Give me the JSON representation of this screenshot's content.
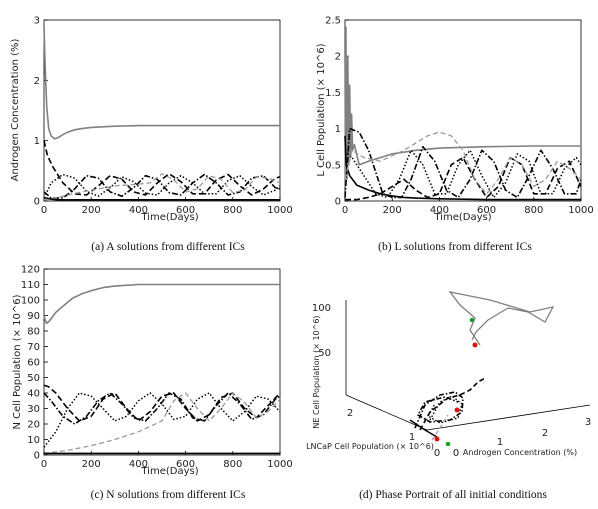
{
  "chart_data": [
    {
      "type": "line",
      "title": "",
      "xlabel": "Time(Days)",
      "ylabel": "Androgen Concentration (%)",
      "xlim": [
        0,
        1000
      ],
      "ylim": [
        0,
        3
      ],
      "xticks": [
        "0",
        "200",
        "400",
        "600",
        "800",
        "1000"
      ],
      "yticks": [
        "0",
        "1",
        "2",
        "3"
      ],
      "caption": "(a) A solutions from different ICs",
      "series": [
        {
          "style": "gray-solid",
          "x": [
            0,
            5,
            12,
            20,
            30,
            45,
            60,
            80,
            100,
            130,
            160,
            200,
            250,
            300,
            400,
            500,
            600,
            800,
            1000
          ],
          "y": [
            2.9,
            2.2,
            1.55,
            1.2,
            1.08,
            1.03,
            1.05,
            1.1,
            1.14,
            1.18,
            1.2,
            1.22,
            1.23,
            1.24,
            1.25,
            1.25,
            1.25,
            1.25,
            1.25
          ]
        },
        {
          "style": "black-dotted",
          "x": [
            0,
            30,
            80,
            130,
            180,
            230,
            280,
            330,
            380,
            430,
            480,
            530,
            580,
            630,
            680,
            730,
            780,
            830,
            880,
            930,
            980,
            1000
          ],
          "y": [
            0.05,
            0.3,
            0.44,
            0.38,
            0.16,
            0.08,
            0.22,
            0.4,
            0.32,
            0.13,
            0.1,
            0.3,
            0.42,
            0.3,
            0.12,
            0.12,
            0.34,
            0.42,
            0.24,
            0.1,
            0.18,
            0.25
          ]
        },
        {
          "style": "black-dashed",
          "x": [
            0,
            15,
            40,
            80,
            130,
            180,
            230,
            280,
            330,
            380,
            430,
            480,
            530,
            580,
            630,
            680,
            730,
            780,
            830,
            880,
            930,
            980,
            1000
          ],
          "y": [
            1.0,
            0.75,
            0.55,
            0.3,
            0.12,
            0.1,
            0.25,
            0.42,
            0.36,
            0.15,
            0.1,
            0.3,
            0.45,
            0.32,
            0.12,
            0.12,
            0.35,
            0.44,
            0.25,
            0.1,
            0.2,
            0.38,
            0.4
          ]
        },
        {
          "style": "black-dashdot",
          "x": [
            0,
            30,
            80,
            130,
            180,
            230,
            280,
            330,
            380,
            430,
            480,
            530,
            580,
            630,
            680,
            730,
            780,
            830,
            880,
            930,
            980,
            1000
          ],
          "y": [
            0.15,
            0.05,
            0.05,
            0.2,
            0.42,
            0.38,
            0.15,
            0.08,
            0.22,
            0.42,
            0.36,
            0.14,
            0.1,
            0.3,
            0.44,
            0.3,
            0.1,
            0.15,
            0.38,
            0.42,
            0.22,
            0.2
          ]
        },
        {
          "style": "gray-dashed",
          "x": [
            0,
            50,
            100,
            200,
            300,
            400,
            450,
            500,
            550,
            600,
            650,
            700,
            750,
            800,
            850,
            900,
            950,
            1000
          ],
          "y": [
            0.02,
            0.05,
            0.1,
            0.18,
            0.25,
            0.28,
            0.3,
            0.45,
            0.35,
            0.15,
            0.2,
            0.42,
            0.36,
            0.14,
            0.18,
            0.4,
            0.38,
            0.3
          ]
        },
        {
          "style": "black-solid",
          "x": [
            0,
            10,
            30,
            60,
            100,
            200,
            400,
            600,
            800,
            1000
          ],
          "y": [
            0.05,
            0.05,
            0.03,
            0.02,
            0.02,
            0.02,
            0.02,
            0.02,
            0.02,
            0.02
          ]
        }
      ]
    },
    {
      "type": "line",
      "title": "",
      "xlabel": "Time(Days)",
      "ylabel": "L Cell Population (× 10^6)",
      "xlim": [
        0,
        1000
      ],
      "ylim": [
        0,
        2.5
      ],
      "xticks": [
        "0",
        "200",
        "400",
        "600",
        "800",
        "1000"
      ],
      "yticks": [
        "0",
        "0.5",
        "1",
        "1.5",
        "2",
        "2.5"
      ],
      "caption": "(b) L solutions from different ICs",
      "series": [
        {
          "style": "gray-solid",
          "x": [
            0,
            4,
            8,
            12,
            16,
            20,
            24,
            28,
            32,
            40,
            60,
            100,
            150,
            200,
            300,
            400,
            600,
            800,
            1000
          ],
          "y": [
            0.1,
            2.4,
            0.3,
            2.0,
            0.5,
            1.6,
            0.6,
            1.2,
            0.7,
            0.78,
            0.5,
            0.55,
            0.6,
            0.65,
            0.7,
            0.73,
            0.75,
            0.76,
            0.76
          ]
        },
        {
          "style": "black-solid",
          "x": [
            0,
            5,
            20,
            50,
            100,
            150,
            200,
            250,
            300,
            400,
            600,
            800,
            1000
          ],
          "y": [
            0.9,
            0.5,
            0.35,
            0.22,
            0.15,
            0.1,
            0.07,
            0.05,
            0.04,
            0.03,
            0.02,
            0.02,
            0.02
          ]
        },
        {
          "style": "black-dashdot",
          "x": [
            0,
            20,
            60,
            100,
            130,
            160,
            200,
            240,
            280,
            330,
            380,
            430,
            480,
            530,
            580,
            630,
            680,
            730,
            780,
            830,
            880,
            930,
            980,
            1000
          ],
          "y": [
            0.05,
            1.0,
            0.95,
            0.7,
            0.4,
            0.1,
            0.05,
            0.05,
            0.3,
            0.75,
            0.55,
            0.15,
            0.05,
            0.3,
            0.7,
            0.55,
            0.15,
            0.05,
            0.35,
            0.7,
            0.45,
            0.1,
            0.1,
            0.3
          ]
        },
        {
          "style": "black-dashed",
          "x": [
            0,
            50,
            100,
            150,
            200,
            250,
            300,
            350,
            400,
            450,
            500,
            550,
            600,
            650,
            700,
            750,
            800,
            850,
            900,
            950,
            1000
          ],
          "y": [
            0.02,
            0.02,
            0.05,
            0.1,
            0.2,
            0.3,
            0.15,
            0.05,
            0.1,
            0.5,
            0.6,
            0.3,
            0.05,
            0.2,
            0.6,
            0.5,
            0.1,
            0.1,
            0.45,
            0.55,
            0.2
          ]
        },
        {
          "style": "black-dotted",
          "x": [
            0,
            30,
            80,
            130,
            180,
            230,
            280,
            330,
            380,
            430,
            480,
            530,
            580,
            630,
            680,
            730,
            780,
            830,
            880,
            930,
            980,
            1000
          ],
          "y": [
            0.7,
            0.6,
            0.35,
            0.1,
            0.05,
            0.3,
            0.7,
            0.5,
            0.1,
            0.1,
            0.5,
            0.7,
            0.35,
            0.05,
            0.25,
            0.65,
            0.55,
            0.1,
            0.1,
            0.45,
            0.6,
            0.5
          ]
        },
        {
          "style": "gray-dashed",
          "x": [
            0,
            30,
            80,
            150,
            250,
            350,
            400,
            450,
            500,
            550,
            600,
            650,
            700,
            750,
            800,
            850,
            900,
            950,
            1000
          ],
          "y": [
            0.3,
            0.7,
            0.6,
            0.55,
            0.7,
            0.9,
            0.95,
            0.9,
            0.7,
            0.3,
            0.1,
            0.3,
            0.6,
            0.5,
            0.2,
            0.3,
            0.55,
            0.45,
            0.3
          ]
        }
      ]
    },
    {
      "type": "line",
      "title": "",
      "xlabel": "Time(Days)",
      "ylabel": "N Cell Population (× 10^6)",
      "xlim": [
        0,
        1000
      ],
      "ylim": [
        0,
        120
      ],
      "xticks": [
        "0",
        "200",
        "400",
        "600",
        "800",
        "1000"
      ],
      "yticks": [
        "0",
        "10",
        "20",
        "30",
        "40",
        "50",
        "60",
        "70",
        "80",
        "90",
        "100",
        "110",
        "120"
      ],
      "caption": "(c) N solutions from different ICs",
      "series": [
        {
          "style": "gray-solid",
          "x": [
            0,
            5,
            10,
            20,
            30,
            50,
            80,
            120,
            160,
            200,
            250,
            300,
            400,
            500,
            600,
            800,
            1000
          ],
          "y": [
            90,
            87,
            85,
            86,
            88,
            92,
            96,
            101,
            104,
            106,
            108,
            109,
            110,
            110,
            110,
            110,
            110
          ]
        },
        {
          "style": "black-dashed",
          "x": [
            0,
            20,
            50,
            100,
            150,
            200,
            250,
            300,
            350,
            400,
            450,
            500,
            550,
            600,
            650,
            700,
            750,
            800,
            850,
            900,
            950,
            1000
          ],
          "y": [
            45,
            44,
            40,
            30,
            22,
            25,
            36,
            40,
            30,
            22,
            28,
            38,
            40,
            30,
            22,
            26,
            37,
            40,
            30,
            24,
            32,
            40
          ]
        },
        {
          "style": "black-dashdot",
          "x": [
            0,
            30,
            80,
            130,
            180,
            230,
            280,
            330,
            380,
            430,
            480,
            530,
            580,
            630,
            680,
            730,
            780,
            830,
            880,
            930,
            980,
            1000
          ],
          "y": [
            40,
            35,
            25,
            20,
            25,
            35,
            40,
            33,
            24,
            22,
            30,
            40,
            36,
            24,
            22,
            32,
            40,
            33,
            23,
            26,
            36,
            38
          ]
        },
        {
          "style": "black-dotted",
          "x": [
            0,
            50,
            100,
            150,
            200,
            250,
            300,
            350,
            400,
            450,
            500,
            550,
            600,
            650,
            700,
            750,
            800,
            850,
            900,
            950,
            1000
          ],
          "y": [
            5,
            15,
            30,
            40,
            38,
            30,
            22,
            25,
            35,
            40,
            33,
            23,
            25,
            36,
            40,
            30,
            22,
            28,
            38,
            36,
            28
          ]
        },
        {
          "style": "gray-dashed",
          "x": [
            0,
            100,
            200,
            300,
            400,
            500,
            550,
            600,
            650,
            700,
            750,
            800,
            850,
            900,
            950,
            1000
          ],
          "y": [
            1,
            3,
            6,
            10,
            15,
            22,
            35,
            40,
            30,
            22,
            30,
            40,
            34,
            24,
            28,
            36
          ]
        },
        {
          "style": "black-solid",
          "x": [
            0,
            50,
            100,
            200,
            300,
            400,
            600,
            800,
            1000
          ],
          "y": [
            1,
            1,
            1,
            1,
            1,
            1,
            1,
            1,
            1
          ]
        }
      ]
    },
    {
      "type": "line",
      "title": "",
      "xlabel": "Androgen Concentration (%)",
      "ylabel": "LNCaP Cell Population (× 10^6)",
      "zlabel": "NE Cell Population (× 10^6)",
      "caption": "(d) Phase Portrait of all initial conditions",
      "x_ticks": [
        "0",
        "1",
        "2",
        "3"
      ],
      "y_ticks": [
        "0",
        "1",
        "2"
      ],
      "z_ticks": [
        "50",
        "100"
      ]
    }
  ]
}
